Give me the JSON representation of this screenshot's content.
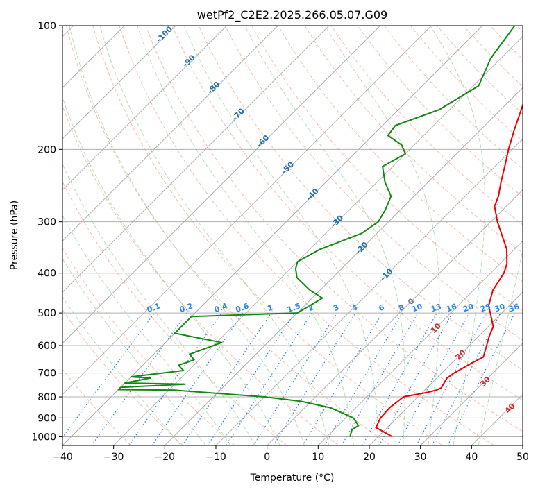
{
  "chart_data": {
    "type": "line",
    "title": "wetPf2_C2E2.2025.266.05.07.G09",
    "xlabel": "Temperature (°C)",
    "ylabel": "Pressure (hPa)",
    "xlim": [
      -40,
      50
    ],
    "ylim": [
      1050,
      100
    ],
    "y_scale": "log",
    "grid": true,
    "skew": "temperature lines slanted ~45° (skew-T log-p)",
    "x_ticks": [
      -40,
      -30,
      -20,
      -10,
      0,
      10,
      20,
      30,
      40,
      50
    ],
    "y_ticks": [
      100,
      200,
      300,
      400,
      500,
      600,
      700,
      800,
      900,
      1000
    ],
    "colors": {
      "temperature": "#ee0000",
      "dewpoint": "#118811",
      "grid": "#b0b0b0",
      "dry_adiabats": "#f5a58a",
      "moist_adiabats": "#a8d8a8",
      "mixing_ratio": "#2f86e0",
      "isotherm_labels_cold": "#1f6fb0",
      "isotherm_labels_warm": "#d62728",
      "isotherm_label_zero": "#777777"
    },
    "series": [
      {
        "name": "",
        "color": "#ee0000",
        "points": [
          [
            22.8,
            1000
          ],
          [
            17.8,
            950
          ],
          [
            16.8,
            900
          ],
          [
            16.6,
            850
          ],
          [
            17.2,
            800
          ],
          [
            21,
            780
          ],
          [
            22.3,
            770
          ],
          [
            22.8,
            760
          ],
          [
            22,
            720
          ],
          [
            22.4,
            700
          ],
          [
            24,
            660
          ],
          [
            25,
            640
          ],
          [
            23.4,
            600
          ],
          [
            22.1,
            570
          ],
          [
            21,
            540
          ],
          [
            18.6,
            510
          ],
          [
            16,
            480
          ],
          [
            13.8,
            440
          ],
          [
            12.6,
            400
          ],
          [
            11.4,
            380
          ],
          [
            8.5,
            350
          ],
          [
            1.3,
            300
          ],
          [
            -2.3,
            275
          ],
          [
            -3.5,
            260
          ],
          [
            -5.8,
            240
          ],
          [
            -8.1,
            220
          ],
          [
            -10.7,
            200
          ],
          [
            -13.3,
            180
          ],
          [
            -16,
            160
          ],
          [
            -17.5,
            150
          ],
          [
            -20.5,
            130
          ],
          [
            -24.3,
            110
          ],
          [
            -26.3,
            105
          ],
          [
            -28.1,
            100
          ]
        ]
      },
      {
        "name": "",
        "color": "#118811",
        "points": [
          [
            14.5,
            1000
          ],
          [
            13.5,
            960
          ],
          [
            14,
            940
          ],
          [
            11.5,
            900
          ],
          [
            5,
            850
          ],
          [
            -2,
            820
          ],
          [
            -10,
            800
          ],
          [
            -29,
            770
          ],
          [
            -40,
            768
          ],
          [
            -40,
            758
          ],
          [
            -28,
            745
          ],
          [
            -40,
            740
          ],
          [
            -36,
            720
          ],
          [
            -40,
            715
          ],
          [
            -31,
            690
          ],
          [
            -33,
            670
          ],
          [
            -31,
            650
          ],
          [
            -33,
            630
          ],
          [
            -29,
            590
          ],
          [
            -40,
            560
          ],
          [
            -40,
            510
          ],
          [
            -20,
            500
          ],
          [
            -19,
            480
          ],
          [
            -18,
            460
          ],
          [
            -22,
            440
          ],
          [
            -27,
            410
          ],
          [
            -29,
            390
          ],
          [
            -30,
            375
          ],
          [
            -28,
            350
          ],
          [
            -23,
            320
          ],
          [
            -22,
            300
          ],
          [
            -23,
            280
          ],
          [
            -24.5,
            260
          ],
          [
            -28.5,
            240
          ],
          [
            -32,
            220
          ],
          [
            -30,
            205
          ],
          [
            -32.5,
            195
          ],
          [
            -37,
            185
          ],
          [
            -37.5,
            175
          ],
          [
            -32,
            160
          ],
          [
            -29,
            140
          ],
          [
            -32,
            120
          ],
          [
            -33.7,
            100
          ]
        ]
      }
    ],
    "isotherm_labels": [
      "-100",
      "-90",
      "-80",
      "-70",
      "-60",
      "-50",
      "-40",
      "-30",
      "-20",
      "-10",
      "0",
      "10",
      "20",
      "30",
      "40"
    ],
    "mixing_ratio_labels": [
      "0.1",
      "0.2",
      "0.4",
      "0.6",
      "1",
      "1.5",
      "2",
      "3",
      "4",
      "6",
      "8",
      "10",
      "13",
      "16",
      "20",
      "25",
      "30",
      "36"
    ]
  }
}
